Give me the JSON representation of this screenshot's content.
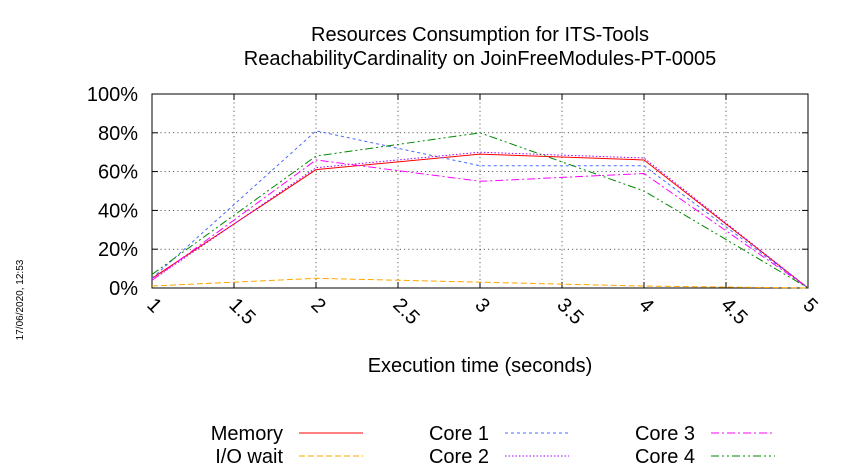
{
  "chart_data": {
    "type": "line",
    "title": [
      "Resources Consumption for ITS-Tools",
      "ReachabilityCardinality on JoinFreeModules-PT-0005"
    ],
    "xlabel": "Execution time (seconds)",
    "ylabel": "",
    "xlim": [
      1,
      5
    ],
    "ylim": [
      0,
      100
    ],
    "x_ticks": [
      "1",
      "1.5",
      "2",
      "2.5",
      "3",
      "3.5",
      "4",
      "4.5",
      "5"
    ],
    "y_ticks": [
      "0%",
      "20%",
      "40%",
      "60%",
      "80%",
      "100%"
    ],
    "x": [
      1,
      2,
      3,
      4,
      5
    ],
    "series": [
      {
        "name": "Memory",
        "color": "#ff0000",
        "dash": "",
        "values": [
          5,
          61,
          69,
          66,
          0
        ]
      },
      {
        "name": "I/O wait",
        "color": "#ffa500",
        "dash": "6 3",
        "values": [
          1,
          5,
          3,
          1,
          0
        ]
      },
      {
        "name": "Core 1",
        "color": "#4a6cff",
        "dash": "3 3",
        "values": [
          5,
          81,
          63,
          63,
          0
        ]
      },
      {
        "name": "Core 2",
        "color": "#a000ff",
        "dash": "1.5 2",
        "values": [
          4,
          62,
          70,
          67,
          0
        ]
      },
      {
        "name": "Core 3",
        "color": "#ff00ff",
        "dash": "8 3 2 3",
        "values": [
          4,
          66,
          55,
          59,
          0
        ]
      },
      {
        "name": "Core 4",
        "color": "#008800",
        "dash": "8 3 2 3 2 3",
        "values": [
          7,
          68,
          80,
          50,
          0
        ]
      }
    ],
    "grid": true,
    "legend_position": "bottom"
  },
  "timestamp": "17/06/2020, 12:53"
}
